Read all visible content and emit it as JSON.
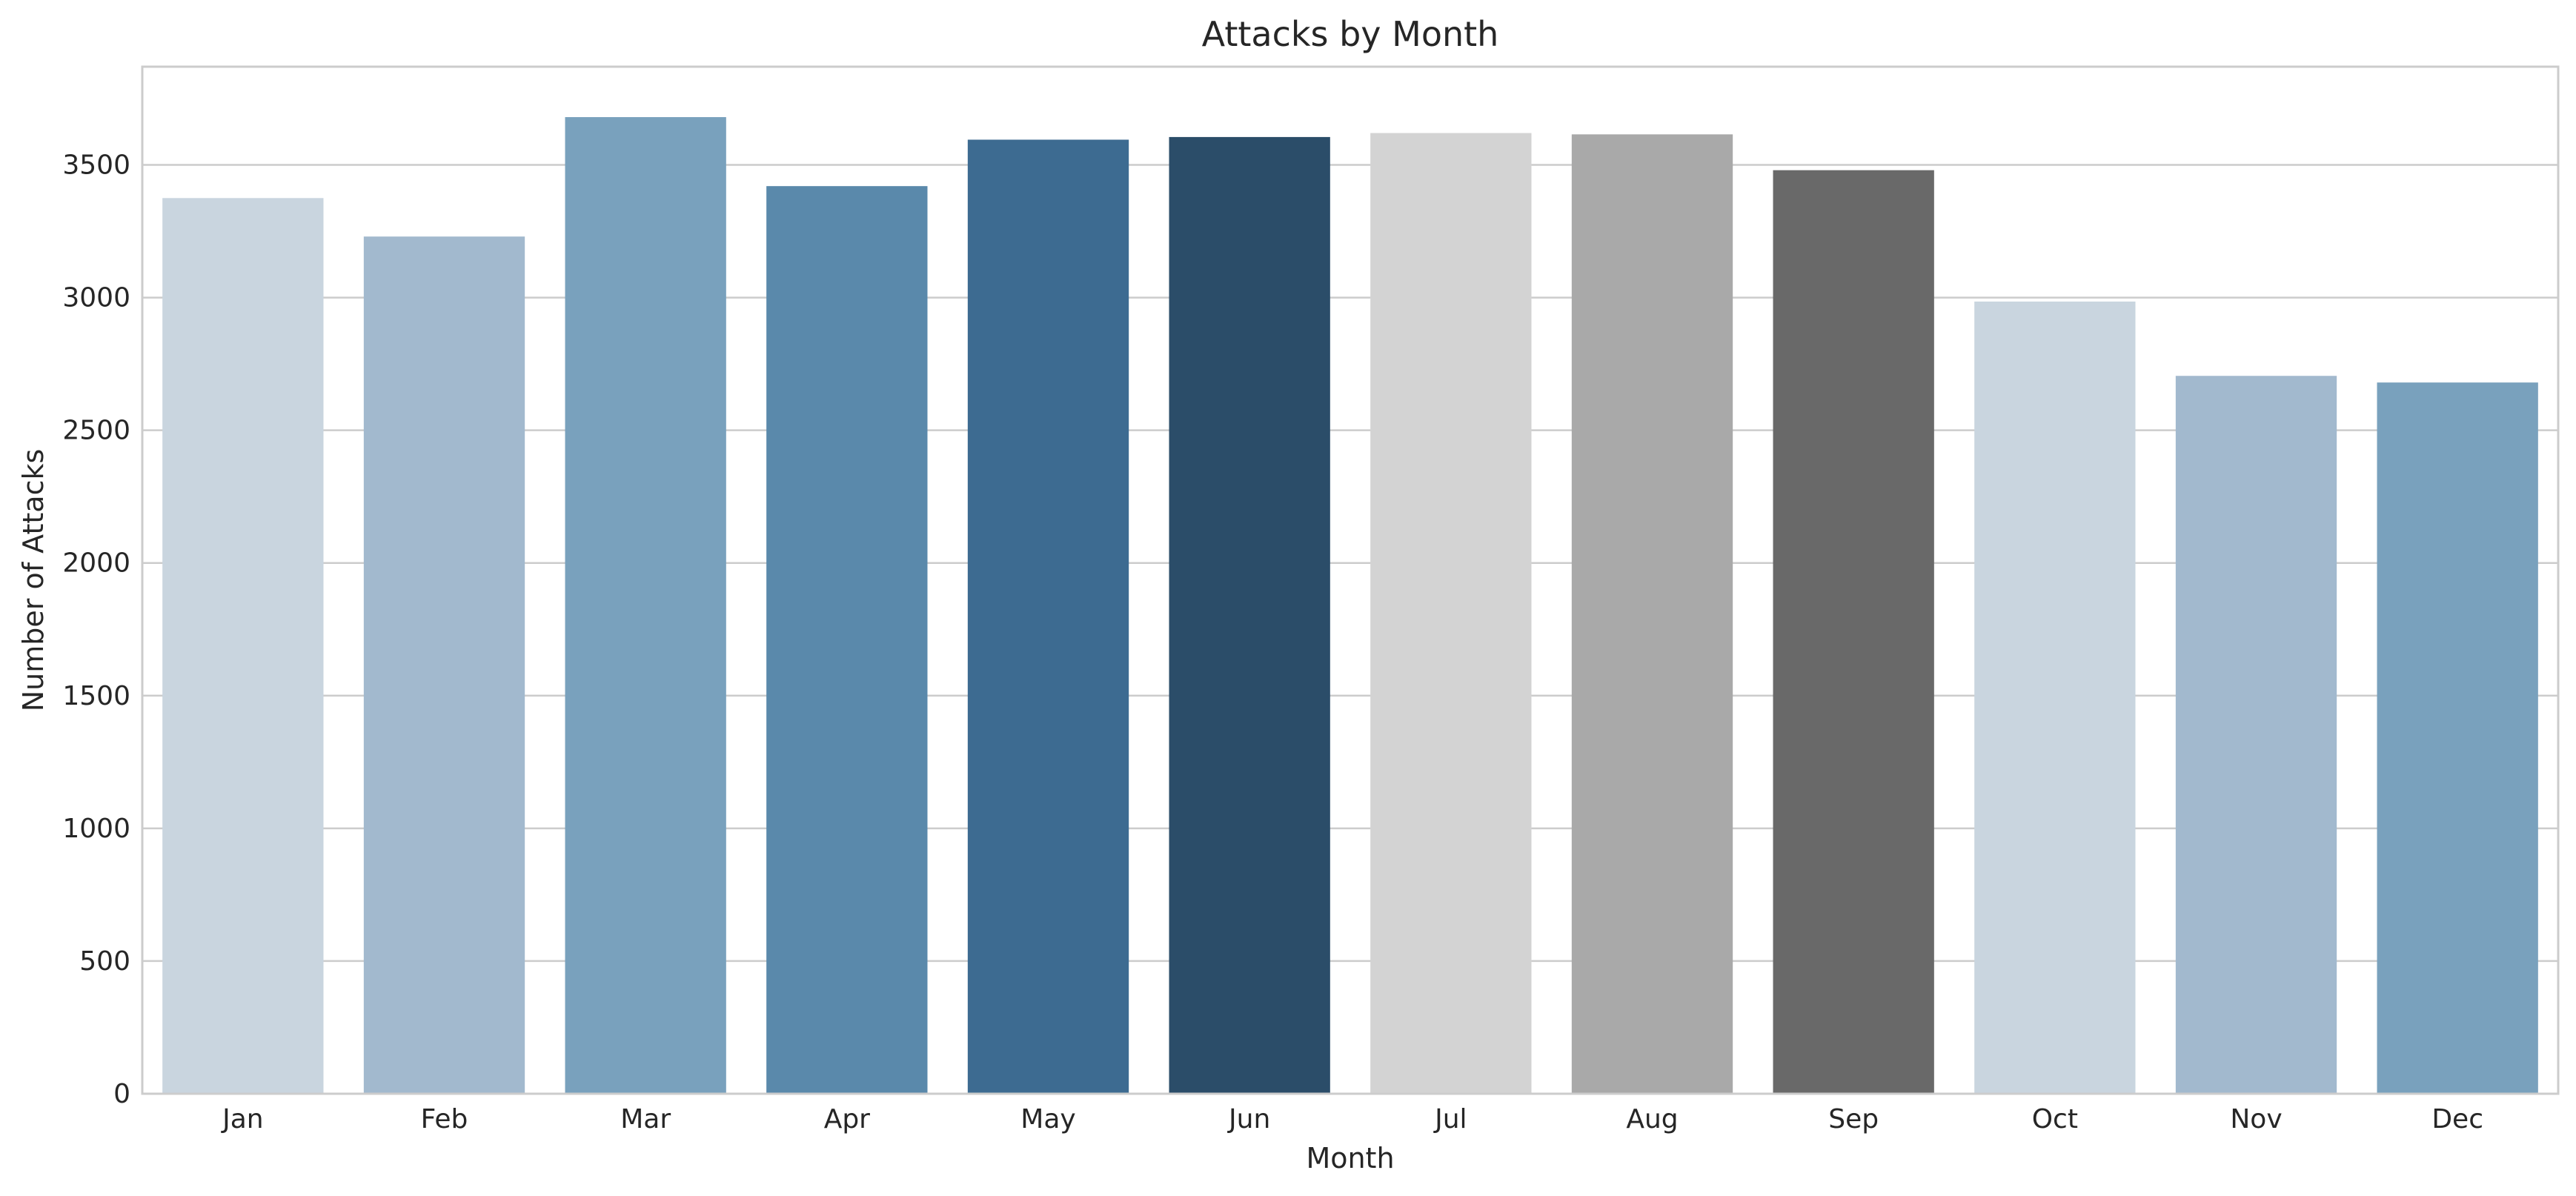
{
  "chart_data": {
    "type": "bar",
    "title": "Attacks by Month",
    "xlabel": "Month",
    "ylabel": "Number of Attacks",
    "categories": [
      "Jan",
      "Feb",
      "Mar",
      "Apr",
      "May",
      "Jun",
      "Jul",
      "Aug",
      "Sep",
      "Oct",
      "Nov",
      "Dec"
    ],
    "values": [
      3375,
      3230,
      3680,
      3420,
      3595,
      3605,
      3620,
      3615,
      3480,
      2985,
      2705,
      2680
    ],
    "colors": [
      "#c9d5df",
      "#a2b9ce",
      "#79a1bd",
      "#5a89ab",
      "#3d6b91",
      "#2b4d69",
      "#d3d3d3",
      "#a9a9a9",
      "#696969",
      "#c9d5df",
      "#a2b9ce",
      "#79a1bd"
    ],
    "ylim": [
      0,
      3870
    ],
    "yticks": [
      0,
      500,
      1000,
      1500,
      2000,
      2500,
      3000,
      3500
    ],
    "ytick_labels": [
      "0",
      "500",
      "1000",
      "1500",
      "2000",
      "2500",
      "3000",
      "3500"
    ],
    "grid": true,
    "legend": false
  }
}
